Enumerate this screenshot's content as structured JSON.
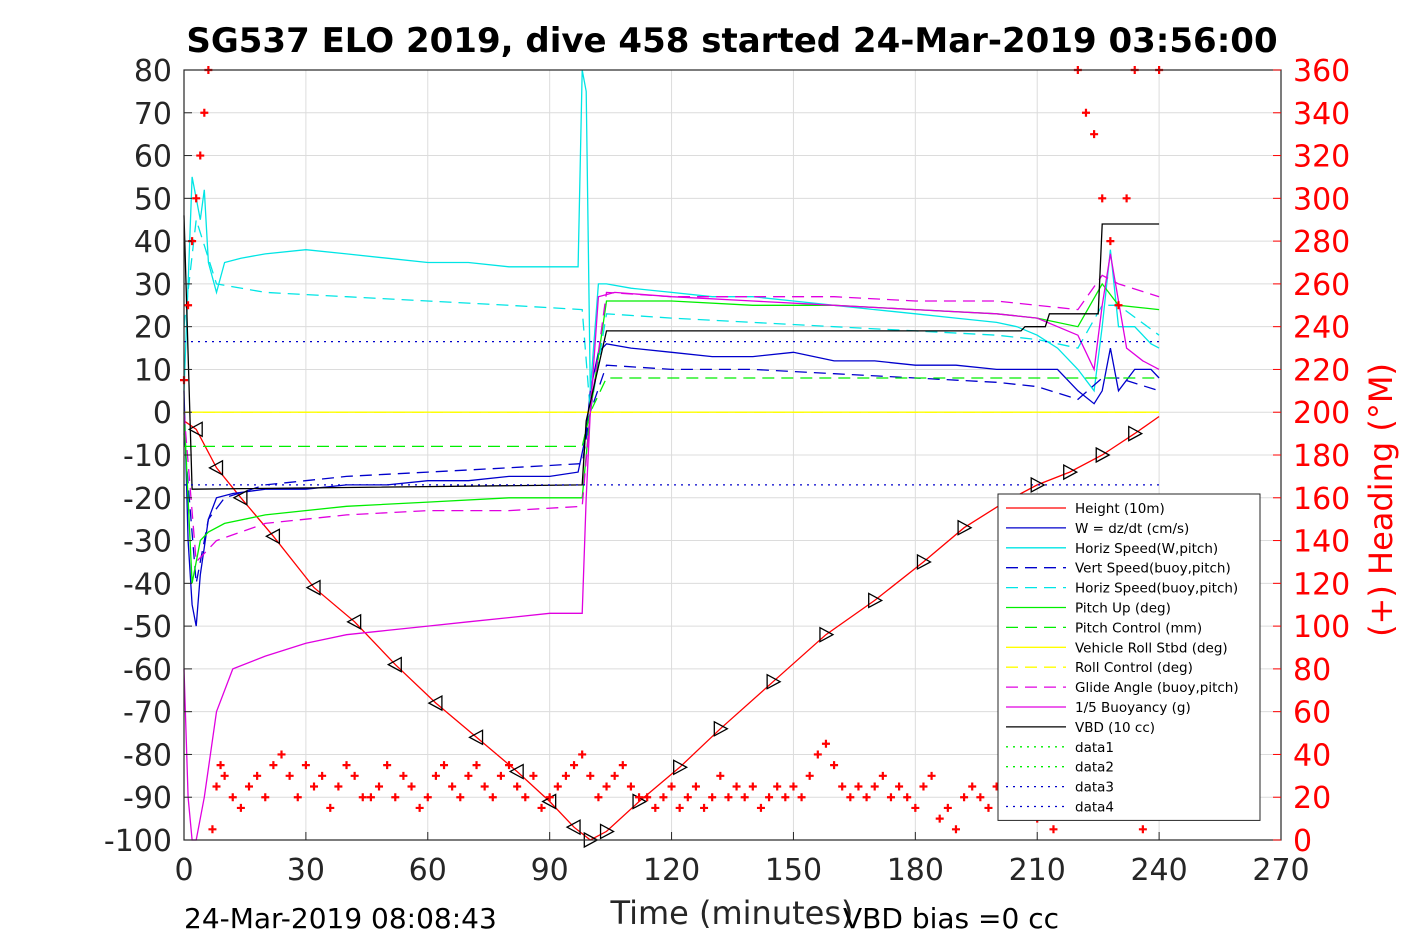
{
  "chart_data": {
    "type": "line",
    "title": "SG537 ELO 2019, dive 458 started 24-Mar-2019 03:56:00",
    "xlabel": "Time (minutes)",
    "ylabel": "",
    "y2label": "(+) Heading (°M)",
    "xlim": [
      0,
      270
    ],
    "ylim": [
      -100,
      80
    ],
    "y2lim": [
      0,
      360
    ],
    "xticks": [
      0,
      30,
      60,
      90,
      120,
      150,
      180,
      210,
      240,
      270
    ],
    "yticks": [
      80,
      70,
      60,
      50,
      40,
      30,
      20,
      10,
      0,
      -10,
      -20,
      -30,
      -40,
      -50,
      -60,
      -70,
      -80,
      -90,
      -100
    ],
    "y2ticks": [
      360,
      340,
      320,
      300,
      280,
      260,
      240,
      220,
      200,
      180,
      160,
      140,
      120,
      100,
      80,
      60,
      40,
      20,
      0
    ],
    "grid": true,
    "legend_position": "lower-right",
    "footer_left": "24-Mar-2019 08:08:43",
    "footer_right": "VBD bias =0 cc",
    "series": [
      {
        "name": "Height (10m)",
        "color": "#ff0000",
        "style": "solid",
        "x": [
          0,
          3,
          8,
          14,
          22,
          32,
          42,
          52,
          62,
          72,
          82,
          90,
          96,
          100,
          104,
          112,
          122,
          132,
          145,
          158,
          170,
          182,
          192,
          202,
          210,
          218,
          226,
          234,
          240
        ],
        "y": [
          -2,
          -4,
          -13,
          -20,
          -29,
          -41,
          -49,
          -59,
          -68,
          -76,
          -84,
          -91,
          -97,
          -100,
          -98,
          -91,
          -83,
          -74,
          -63,
          -52,
          -44,
          -35,
          -27,
          -21,
          -17,
          -14,
          -10,
          -5,
          -1
        ]
      },
      {
        "name": "W = dz/dt (cm/s)",
        "color": "#0000cc",
        "style": "solid",
        "x": [
          0,
          1,
          2,
          3,
          4,
          6,
          8,
          12,
          20,
          30,
          40,
          50,
          60,
          70,
          80,
          90,
          97,
          99,
          100,
          102,
          104,
          110,
          120,
          130,
          140,
          150,
          160,
          170,
          180,
          190,
          200,
          205,
          210,
          215,
          220,
          224,
          226,
          228,
          230,
          234,
          238,
          240
        ],
        "y": [
          5,
          -30,
          -45,
          -50,
          -38,
          -25,
          -20,
          -19,
          -18,
          -18,
          -17,
          -17,
          -16,
          -16,
          -15,
          -15,
          -14,
          -5,
          5,
          14,
          16,
          15,
          14,
          13,
          13,
          14,
          12,
          12,
          11,
          11,
          10,
          10,
          10,
          10,
          5,
          2,
          5,
          15,
          5,
          10,
          10,
          8
        ]
      },
      {
        "name": "Horiz Speed(W,pitch)",
        "color": "#00e5e5",
        "style": "solid",
        "x": [
          0,
          1,
          2,
          3,
          4,
          5,
          6,
          8,
          10,
          14,
          20,
          30,
          40,
          50,
          60,
          70,
          80,
          90,
          97,
          98,
          99,
          100,
          102,
          104,
          110,
          120,
          130,
          140,
          150,
          160,
          170,
          180,
          190,
          200,
          205,
          210,
          215,
          220,
          224,
          226,
          228,
          230,
          234,
          238,
          240
        ],
        "y": [
          5,
          30,
          55,
          50,
          45,
          52,
          35,
          28,
          35,
          36,
          37,
          38,
          37,
          36,
          35,
          35,
          34,
          34,
          34,
          80,
          75,
          5,
          30,
          30,
          29,
          28,
          27,
          27,
          26,
          25,
          24,
          23,
          22,
          21,
          20,
          18,
          15,
          10,
          5,
          20,
          38,
          20,
          20,
          16,
          15
        ]
      },
      {
        "name": "Vert Speed(buoy,pitch)",
        "color": "#0000cc",
        "style": "dashed",
        "x": [
          0,
          3,
          6,
          10,
          20,
          40,
          60,
          80,
          98,
          100,
          104,
          120,
          140,
          160,
          180,
          200,
          210,
          220,
          226,
          230,
          240
        ],
        "y": [
          -5,
          -40,
          -25,
          -20,
          -17,
          -15,
          -14,
          -13,
          -12,
          0,
          11,
          10,
          10,
          9,
          8,
          7,
          6,
          3,
          8,
          8,
          5
        ]
      },
      {
        "name": "Horiz Speed(buoy,pitch)",
        "color": "#00e5e5",
        "style": "dashed",
        "x": [
          0,
          3,
          8,
          20,
          40,
          60,
          80,
          98,
          100,
          104,
          120,
          140,
          160,
          180,
          200,
          210,
          220,
          226,
          230,
          240
        ],
        "y": [
          20,
          45,
          30,
          28,
          27,
          26,
          25,
          24,
          0,
          23,
          22,
          21,
          20,
          19,
          18,
          17,
          15,
          25,
          25,
          18
        ]
      },
      {
        "name": "Pitch Up (deg)",
        "color": "#00ee00",
        "style": "solid",
        "x": [
          0,
          2,
          4,
          6,
          10,
          20,
          40,
          60,
          80,
          98,
          100,
          104,
          120,
          140,
          160,
          180,
          200,
          210,
          220,
          226,
          230,
          240
        ],
        "y": [
          0,
          -40,
          -30,
          -28,
          -26,
          -24,
          -22,
          -21,
          -20,
          -20,
          0,
          26,
          26,
          25,
          25,
          24,
          23,
          22,
          20,
          30,
          25,
          24
        ]
      },
      {
        "name": "Pitch Control (mm)",
        "color": "#00ee00",
        "style": "dashed",
        "x": [
          0,
          5,
          10,
          40,
          60,
          90,
          98,
          100,
          104,
          140,
          180,
          210,
          220,
          230,
          240
        ],
        "y": [
          -8,
          -8,
          -8,
          -8,
          -8,
          -8,
          -8,
          0,
          8,
          8,
          8,
          8,
          8,
          8,
          8
        ]
      },
      {
        "name": "Vehicle Roll Stbd (deg)",
        "color": "#ffff00",
        "style": "solid",
        "x": [
          0,
          10,
          20,
          40,
          60,
          80,
          98,
          100,
          104,
          140,
          180,
          210,
          220,
          240
        ],
        "y": [
          0,
          0,
          0,
          0,
          0,
          0,
          0,
          0,
          0,
          0,
          0,
          0,
          0,
          0
        ]
      },
      {
        "name": "Roll Control (deg)",
        "color": "#ffff00",
        "style": "dashed",
        "x": [
          0,
          10,
          40,
          80,
          98,
          104,
          140,
          180,
          220,
          240
        ],
        "y": [
          0,
          0,
          0,
          0,
          0,
          0,
          0,
          0,
          0,
          0
        ]
      },
      {
        "name": "Glide Angle (buoy,pitch)",
        "color": "#e000e0",
        "style": "dashed",
        "x": [
          0,
          3,
          8,
          20,
          40,
          60,
          80,
          98,
          100,
          104,
          120,
          140,
          160,
          180,
          200,
          210,
          220,
          226,
          230,
          240
        ],
        "y": [
          0,
          -35,
          -30,
          -26,
          -24,
          -23,
          -23,
          -22,
          0,
          28,
          27,
          27,
          27,
          26,
          26,
          25,
          24,
          32,
          30,
          27
        ]
      },
      {
        "name": "1/5 Buoyancy (g)",
        "color": "#e000e0",
        "style": "solid",
        "x": [
          0,
          1,
          2,
          3,
          5,
          8,
          12,
          20,
          30,
          40,
          50,
          60,
          70,
          80,
          90,
          98,
          99,
          100,
          102,
          106,
          120,
          140,
          160,
          180,
          200,
          210,
          220,
          224,
          226,
          228,
          232,
          236,
          240
        ],
        "y": [
          -60,
          -90,
          -100,
          -100,
          -90,
          -70,
          -60,
          -57,
          -54,
          -52,
          -51,
          -50,
          -49,
          -48,
          -47,
          -47,
          -20,
          0,
          27,
          28,
          27,
          26,
          25,
          24,
          23,
          22,
          18,
          10,
          25,
          37,
          15,
          12,
          10
        ]
      },
      {
        "name": "VBD (10 cc)",
        "color": "#000000",
        "style": "solid",
        "x": [
          0,
          2,
          2,
          98,
          99,
          104,
          206,
          207,
          212,
          213,
          225,
          226,
          240
        ],
        "y": [
          46,
          -18,
          -18,
          -17,
          -2,
          19,
          19,
          20,
          20,
          23,
          23,
          44,
          44
        ]
      },
      {
        "name": "data1",
        "color": "#00ee00",
        "style": "dotted",
        "x": [],
        "y": []
      },
      {
        "name": "data2",
        "color": "#00ee00",
        "style": "dotted",
        "x": [],
        "y": []
      },
      {
        "name": "data3",
        "color": "#0000cc",
        "style": "dotted",
        "x": [
          0,
          240
        ],
        "y": [
          16.5,
          16.5
        ]
      },
      {
        "name": "data4",
        "color": "#0000cc",
        "style": "dotted",
        "x": [
          0,
          240
        ],
        "y": [
          -17,
          -17
        ]
      }
    ],
    "heading": {
      "axis": "right",
      "color": "#ff0000",
      "marker": "+",
      "x": [
        0,
        1,
        2,
        3,
        4,
        5,
        6,
        7,
        8,
        9,
        10,
        12,
        14,
        16,
        18,
        20,
        22,
        24,
        26,
        28,
        30,
        32,
        34,
        36,
        38,
        40,
        42,
        44,
        46,
        48,
        50,
        52,
        54,
        56,
        58,
        60,
        62,
        64,
        66,
        68,
        70,
        72,
        74,
        76,
        78,
        80,
        82,
        84,
        86,
        88,
        90,
        92,
        94,
        96,
        98,
        100,
        102,
        104,
        106,
        108,
        110,
        112,
        114,
        116,
        118,
        120,
        122,
        124,
        126,
        128,
        130,
        132,
        134,
        136,
        138,
        140,
        142,
        144,
        146,
        148,
        150,
        152,
        154,
        156,
        158,
        160,
        162,
        164,
        166,
        168,
        170,
        172,
        174,
        176,
        178,
        180,
        182,
        184,
        186,
        188,
        190,
        192,
        194,
        196,
        198,
        200,
        202,
        204,
        206,
        208,
        210,
        212,
        214,
        216,
        218,
        220,
        222,
        224,
        226,
        228,
        230,
        232,
        234,
        236,
        238,
        240
      ],
      "y": [
        215,
        250,
        280,
        300,
        320,
        340,
        360,
        5,
        25,
        35,
        30,
        20,
        15,
        25,
        30,
        20,
        35,
        40,
        30,
        20,
        35,
        25,
        30,
        15,
        25,
        35,
        30,
        20,
        20,
        25,
        35,
        20,
        30,
        25,
        15,
        20,
        30,
        35,
        25,
        20,
        30,
        35,
        25,
        20,
        30,
        35,
        25,
        20,
        30,
        15,
        20,
        25,
        30,
        35,
        40,
        30,
        20,
        25,
        30,
        35,
        25,
        20,
        20,
        15,
        20,
        25,
        15,
        20,
        25,
        15,
        20,
        30,
        20,
        25,
        20,
        25,
        15,
        20,
        25,
        20,
        25,
        20,
        30,
        40,
        45,
        35,
        25,
        20,
        25,
        20,
        25,
        30,
        20,
        25,
        20,
        15,
        25,
        30,
        10,
        15,
        5,
        20,
        25,
        20,
        15,
        25,
        20,
        15,
        25,
        20,
        10,
        15,
        5,
        20,
        35,
        360,
        340,
        330,
        300,
        280,
        250,
        300,
        360,
        5,
        15,
        360
      ]
    }
  }
}
